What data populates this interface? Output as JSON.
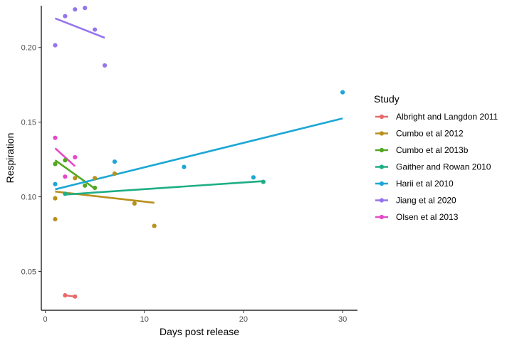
{
  "chart_data": {
    "type": "scatter",
    "xlabel": "Days post release",
    "ylabel": "Respiration",
    "xlim": [
      -0.4,
      31.5
    ],
    "ylim": [
      0.024,
      0.228
    ],
    "x_ticks": [
      0,
      10,
      20,
      30
    ],
    "x_tick_labels": [
      "0",
      "10",
      "20",
      "30"
    ],
    "y_ticks": [
      0.05,
      0.1,
      0.15,
      0.2
    ],
    "y_tick_labels": [
      "0.05",
      "0.10",
      "0.15",
      "0.20"
    ],
    "grid": false,
    "legend_title": "Study",
    "legend_position": "right",
    "series": [
      {
        "name": "Albright and Langdon 2011",
        "color": "#E76B6A",
        "points": [
          [
            2,
            0.034
          ],
          [
            3,
            0.0332
          ]
        ],
        "fit": [
          [
            2,
            0.034
          ],
          [
            3,
            0.0332
          ]
        ]
      },
      {
        "name": "Cumbo et al 2012",
        "color": "#B8901C",
        "points": [
          [
            1,
            0.099
          ],
          [
            1,
            0.085
          ],
          [
            3,
            0.1125
          ],
          [
            5,
            0.1125
          ],
          [
            7,
            0.1155
          ],
          [
            9,
            0.0955
          ],
          [
            11,
            0.0805
          ]
        ],
        "fit": [
          [
            1,
            0.1035
          ],
          [
            11,
            0.096
          ]
        ]
      },
      {
        "name": "Cumbo et al 2013b",
        "color": "#52A722",
        "points": [
          [
            1,
            0.122
          ],
          [
            2,
            0.1245
          ],
          [
            4,
            0.1075
          ],
          [
            5,
            0.106
          ]
        ],
        "fit": [
          [
            1,
            0.1245
          ],
          [
            5,
            0.1055
          ]
        ]
      },
      {
        "name": "Gaither and Rowan 2010",
        "color": "#1DAE85",
        "points": [
          [
            2,
            0.102
          ],
          [
            22,
            0.11
          ]
        ],
        "fit": [
          [
            2,
            0.1015
          ],
          [
            22,
            0.1105
          ]
        ]
      },
      {
        "name": "Harii et al 2010",
        "color": "#1CA7D6",
        "points": [
          [
            1,
            0.1085
          ],
          [
            7,
            0.1235
          ],
          [
            14,
            0.12
          ],
          [
            21,
            0.113
          ],
          [
            30,
            0.17
          ]
        ],
        "fit": [
          [
            1,
            0.105
          ],
          [
            30,
            0.1525
          ]
        ]
      },
      {
        "name": "Jiang et al 2020",
        "color": "#9575EC",
        "points": [
          [
            1,
            0.2015
          ],
          [
            2,
            0.221
          ],
          [
            3,
            0.2255
          ],
          [
            4,
            0.2265
          ],
          [
            5,
            0.212
          ],
          [
            6,
            0.188
          ]
        ],
        "fit": [
          [
            1,
            0.2195
          ],
          [
            6,
            0.2065
          ]
        ]
      },
      {
        "name": "Olsen et al 2013",
        "color": "#E44AC7",
        "points": [
          [
            1,
            0.1395
          ],
          [
            2,
            0.1135
          ],
          [
            3,
            0.1265
          ]
        ],
        "fit": [
          [
            1,
            0.1325
          ],
          [
            3,
            0.1205
          ]
        ]
      }
    ]
  }
}
